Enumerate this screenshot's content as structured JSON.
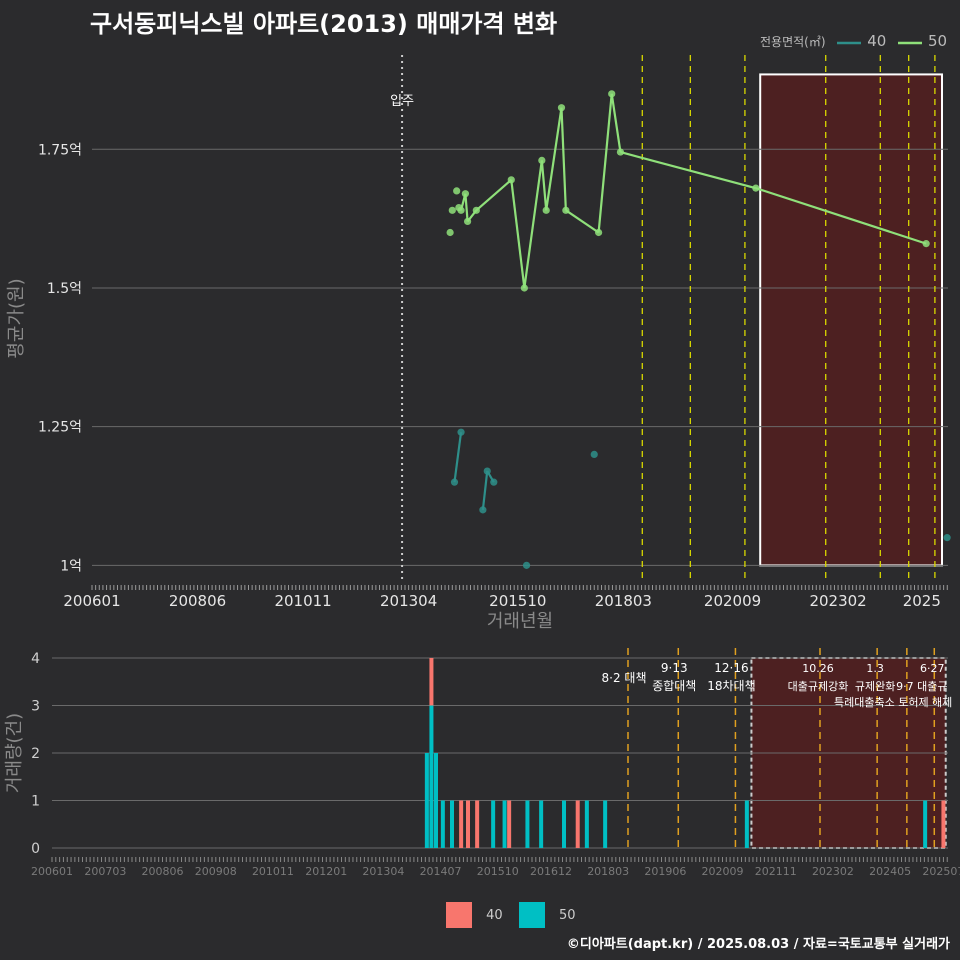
{
  "title": "구서동피닉스빌 아파트(2013) 매매가격 변화",
  "credit": "©디아파트(dapt.kr) / 2025.08.03 / 자료=국토교통부 실거래가",
  "colors": {
    "bg": "#2b2b2d",
    "grid": "#6a6a6a",
    "s40": "#2e8f8a",
    "s50": "#8fe07a",
    "bar40": "#f8766d",
    "bar50": "#00bfc4",
    "policy": "#d9d900",
    "policy2": "#e0a020",
    "box": "#5a1e1e",
    "movein": "#cccccc"
  },
  "chart_data": [
    {
      "type": "line",
      "title": "구서동피닉스빌 아파트(2013) 매매가격 변화",
      "xlabel": "거래년월",
      "ylabel": "평균가(원)",
      "xlim": [
        2006.0,
        2025.6
      ],
      "ylim": [
        0.97,
        1.92
      ],
      "x_ticks": [
        "200601",
        "200806",
        "201011",
        "201304",
        "201510",
        "201803",
        "202009",
        "202302",
        "2025"
      ],
      "y_ticks": [
        "1억",
        "1.25억",
        "1.5억",
        "1.75억"
      ],
      "legend_title": "전용면적(㎡)",
      "series": [
        {
          "name": "40",
          "points": [
            [
              2014.3,
              1.15
            ],
            [
              2014.45,
              1.24
            ],
            [
              2014.95,
              1.1
            ],
            [
              2015.05,
              1.17
            ],
            [
              2015.2,
              1.15
            ],
            [
              2015.95,
              1.0
            ],
            [
              2017.5,
              1.2
            ],
            [
              2025.58,
              1.05
            ]
          ]
        },
        {
          "name": "50",
          "points": [
            [
              2014.2,
              1.6
            ],
            [
              2014.25,
              1.64
            ],
            [
              2014.35,
              1.675
            ],
            [
              2014.4,
              1.645
            ],
            [
              2014.45,
              1.64
            ],
            [
              2014.55,
              1.67
            ],
            [
              2014.6,
              1.62
            ],
            [
              2014.8,
              1.64
            ],
            [
              2015.6,
              1.695
            ],
            [
              2015.9,
              1.5
            ],
            [
              2016.3,
              1.73
            ],
            [
              2016.4,
              1.64
            ],
            [
              2016.75,
              1.825
            ],
            [
              2016.85,
              1.64
            ],
            [
              2017.6,
              1.6
            ],
            [
              2017.9,
              1.85
            ],
            [
              2018.1,
              1.745
            ],
            [
              2021.2,
              1.68
            ],
            [
              2025.1,
              1.58
            ]
          ]
        }
      ],
      "annotations": [
        {
          "label": "입주",
          "x": 2013.1
        }
      ]
    },
    {
      "type": "bar",
      "ylabel": "거래량(건)",
      "ylim": [
        0,
        4
      ],
      "x_ticks": [
        "200601",
        "200703",
        "200806",
        "200908",
        "201011",
        "201201",
        "201304",
        "201407",
        "201510",
        "201612",
        "201803",
        "201906",
        "202009",
        "202111",
        "202302",
        "202405",
        "202507"
      ],
      "legend": [
        "40",
        "50"
      ],
      "bars": [
        {
          "x": 2014.2,
          "s40": 0,
          "s50": 2
        },
        {
          "x": 2014.3,
          "s40": 1,
          "s50": 3
        },
        {
          "x": 2014.4,
          "s40": 0,
          "s50": 2
        },
        {
          "x": 2014.55,
          "s40": 0,
          "s50": 1
        },
        {
          "x": 2014.75,
          "s40": 0,
          "s50": 1
        },
        {
          "x": 2014.95,
          "s40": 1,
          "s50": 0
        },
        {
          "x": 2015.1,
          "s40": 1,
          "s50": 0
        },
        {
          "x": 2015.3,
          "s40": 1,
          "s50": 0
        },
        {
          "x": 2015.65,
          "s40": 0,
          "s50": 1
        },
        {
          "x": 2015.9,
          "s40": 0,
          "s50": 1
        },
        {
          "x": 2016.0,
          "s40": 1,
          "s50": 0
        },
        {
          "x": 2016.4,
          "s40": 0,
          "s50": 1
        },
        {
          "x": 2016.7,
          "s40": 0,
          "s50": 1
        },
        {
          "x": 2017.2,
          "s40": 0,
          "s50": 1
        },
        {
          "x": 2017.5,
          "s40": 1,
          "s50": 0
        },
        {
          "x": 2017.7,
          "s40": 0,
          "s50": 1
        },
        {
          "x": 2018.1,
          "s40": 0,
          "s50": 1
        },
        {
          "x": 2021.2,
          "s40": 0,
          "s50": 1
        },
        {
          "x": 2025.1,
          "s40": 0,
          "s50": 1
        },
        {
          "x": 2025.5,
          "s40": 1,
          "s50": 0
        }
      ],
      "policies": [
        {
          "x": 2018.6,
          "line1": "8·2 대책",
          "line2": ""
        },
        {
          "x": 2019.7,
          "line1": "9·13",
          "line2": "종합대책"
        },
        {
          "x": 2020.95,
          "line1": "12·16",
          "line2": "18차대책"
        },
        {
          "x": 2022.8,
          "line1": "10.26",
          "line2": "대출규제강화"
        },
        {
          "x": 2024.05,
          "line1": "1.3",
          "line2": "규제완화"
        },
        {
          "x": 2024.7,
          "line1": "",
          "line2": "9·7"
        },
        {
          "x": 2025.3,
          "line1": "6·27",
          "line2": "대출규"
        }
      ],
      "extra_note": "특례대출축소 토허제 해제",
      "highlight_range": [
        2021.3,
        2025.6
      ]
    }
  ]
}
